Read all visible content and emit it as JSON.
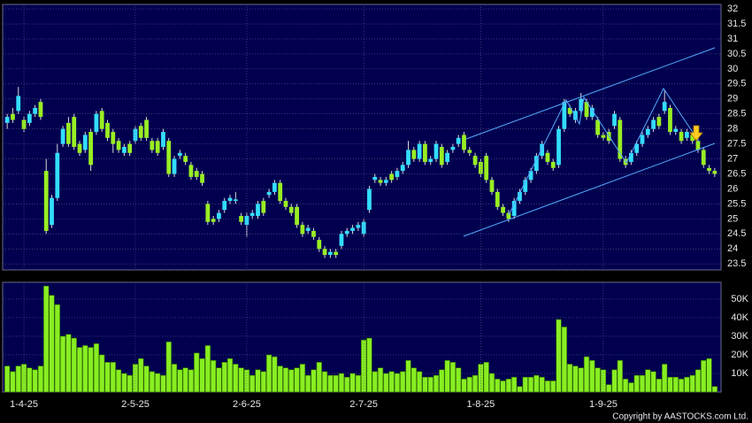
{
  "chart_data": [
    {
      "type": "candlestick",
      "up_color": "#33ddff",
      "down_color": "#99ee22",
      "wick_color": "#d8d8d8",
      "grid": true,
      "ylim": [
        23.3,
        32.15
      ],
      "yticks": [
        23.5,
        24,
        24.5,
        25,
        25.5,
        26,
        26.5,
        27,
        27.5,
        28,
        28.5,
        29,
        29.5,
        30,
        30.5,
        31,
        31.5,
        32
      ],
      "open": [
        28.2,
        28.5,
        28.6,
        28.3,
        28.2,
        28.5,
        28.9,
        26.6,
        24.8,
        25.7,
        27.5,
        28.2,
        28.4,
        27.5,
        27.3,
        27.9,
        27.9,
        28.6,
        28.2,
        27.9,
        27.6,
        27.2,
        27.5,
        27.6,
        28.1,
        28.3,
        27.6,
        27.6,
        27.4,
        27.6,
        26.5,
        27.1,
        27.1,
        26.8,
        26.6,
        26.5,
        25.5,
        25.0,
        25.0,
        25.3,
        25.6,
        25.6,
        25.1,
        24.8,
        25.1,
        25.1,
        25.6,
        25.8,
        25.9,
        26.2,
        25.6,
        25.4,
        25.4,
        24.8,
        24.6,
        24.6,
        24.3,
        24.0,
        23.8,
        23.9,
        24.1,
        24.5,
        24.6,
        24.7,
        24.5,
        25.3,
        26.3,
        26.3,
        26.2,
        26.5,
        26.4,
        26.6,
        26.8,
        27.3,
        27.0,
        27.5,
        26.9,
        27.0,
        27.4,
        26.9,
        27.3,
        27.5,
        27.8,
        27.3,
        27.1,
        26.9,
        27.1,
        26.3,
        25.9,
        25.4,
        25.2,
        25.1,
        25.6,
        25.9,
        26.3,
        26.6,
        27.1,
        27.2,
        26.9,
        26.8,
        28.0,
        28.7,
        28.3,
        28.6,
        28.9,
        28.4,
        28.3,
        27.8,
        27.9,
        28.1,
        28.3,
        27.0,
        26.9,
        27.2,
        27.5,
        27.8,
        28.0,
        28.4,
        28.6,
        28.7,
        27.9,
        27.9,
        27.7,
        27.8,
        27.6,
        27.3,
        26.7,
        26.6
      ],
      "high": [
        28.5,
        28.7,
        29.4,
        28.4,
        28.6,
        28.8,
        29.0,
        27.0,
        25.8,
        27.5,
        28.1,
        28.4,
        28.5,
        27.6,
        27.9,
        28.0,
        28.6,
        28.7,
        28.3,
        28.0,
        27.7,
        27.5,
        27.6,
        28.1,
        28.2,
        28.4,
        27.7,
        27.7,
        28.0,
        27.7,
        27.1,
        27.3,
        27.2,
        26.9,
        26.7,
        26.6,
        25.6,
        25.1,
        25.3,
        25.7,
        25.8,
        25.9,
        25.2,
        25.2,
        25.3,
        25.6,
        25.7,
        26.0,
        26.3,
        26.3,
        25.7,
        25.5,
        25.5,
        24.9,
        24.8,
        24.7,
        24.4,
        24.1,
        24.0,
        24.0,
        24.6,
        24.7,
        24.8,
        24.9,
        25.0,
        26.1,
        26.5,
        26.4,
        26.4,
        26.6,
        26.7,
        26.9,
        27.6,
        27.4,
        27.6,
        27.6,
        27.1,
        27.6,
        27.5,
        27.3,
        27.5,
        27.8,
        27.9,
        27.4,
        27.2,
        27.0,
        27.2,
        26.4,
        26.0,
        25.5,
        25.3,
        25.7,
        26.0,
        26.4,
        26.7,
        27.2,
        27.6,
        27.3,
        27.0,
        28.1,
        29.0,
        28.8,
        28.7,
        29.2,
        29.0,
        28.8,
        28.4,
        27.9,
        28.0,
        28.6,
        28.4,
        27.1,
        27.3,
        27.6,
        27.9,
        28.1,
        28.4,
        28.5,
        29.3,
        28.8,
        28.1,
        28.0,
        28.0,
        27.9,
        27.7,
        27.4,
        26.8,
        26.7
      ],
      "low": [
        28.0,
        28.2,
        28.5,
        27.9,
        28.1,
        28.4,
        28.3,
        24.5,
        24.7,
        25.6,
        27.4,
        27.4,
        27.3,
        27.1,
        27.2,
        26.6,
        27.8,
        27.9,
        27.6,
        27.2,
        27.2,
        27.1,
        27.1,
        27.5,
        27.6,
        27.6,
        27.2,
        27.1,
        27.3,
        26.4,
        26.4,
        27.0,
        26.8,
        26.3,
        26.3,
        26.1,
        24.8,
        24.8,
        24.9,
        25.2,
        25.5,
        25.5,
        24.8,
        24.4,
        25.0,
        25.0,
        25.1,
        25.7,
        25.8,
        25.5,
        25.3,
        25.1,
        24.7,
        24.4,
        24.5,
        24.3,
        23.9,
        23.7,
        23.7,
        23.7,
        24.0,
        24.4,
        24.5,
        24.6,
        24.4,
        25.2,
        26.2,
        26.1,
        26.1,
        26.2,
        26.3,
        26.5,
        26.7,
        26.9,
        26.9,
        26.8,
        26.8,
        26.9,
        26.7,
        26.8,
        27.2,
        27.4,
        27.2,
        27.1,
        26.7,
        26.4,
        26.2,
        25.8,
        25.3,
        25.1,
        24.9,
        25.0,
        25.5,
        25.8,
        26.2,
        26.5,
        27.0,
        26.8,
        26.6,
        26.7,
        27.9,
        28.4,
        28.2,
        28.5,
        28.3,
        28.3,
        27.7,
        27.6,
        27.5,
        28.0,
        26.9,
        26.7,
        26.8,
        27.1,
        27.4,
        27.7,
        27.9,
        28.0,
        28.5,
        27.8,
        27.8,
        27.5,
        27.6,
        27.5,
        27.2,
        26.7,
        26.5,
        26.4
      ],
      "close": [
        28.4,
        28.3,
        29.1,
        28.0,
        28.5,
        28.7,
        28.4,
        24.6,
        25.7,
        27.2,
        28.0,
        27.5,
        27.4,
        27.2,
        27.8,
        26.8,
        28.5,
        28.0,
        27.7,
        27.5,
        27.3,
        27.4,
        27.2,
        28.0,
        27.7,
        27.7,
        27.3,
        27.2,
        27.9,
        26.5,
        27.0,
        27.2,
        26.9,
        26.4,
        26.4,
        26.2,
        24.9,
        24.9,
        25.2,
        25.6,
        25.7,
        25.65,
        24.9,
        25.1,
        25.2,
        25.5,
        25.2,
        25.9,
        26.2,
        25.6,
        25.4,
        25.2,
        24.8,
        24.5,
        24.7,
        24.4,
        24.0,
        23.8,
        23.9,
        23.8,
        24.5,
        24.6,
        24.7,
        24.8,
        24.9,
        26.0,
        26.4,
        26.2,
        26.3,
        26.3,
        26.6,
        26.8,
        27.3,
        27.0,
        27.5,
        26.9,
        27.0,
        27.5,
        26.8,
        27.2,
        27.4,
        27.7,
        27.3,
        27.2,
        26.8,
        26.5,
        26.3,
        25.9,
        25.4,
        25.2,
        25.0,
        25.6,
        25.9,
        26.3,
        26.6,
        27.1,
        27.5,
        26.9,
        26.7,
        28.0,
        28.9,
        28.5,
        28.6,
        29.0,
        28.4,
        28.7,
        27.8,
        27.7,
        27.6,
        28.5,
        27.0,
        26.8,
        27.2,
        27.5,
        27.8,
        28.0,
        28.3,
        28.1,
        28.9,
        27.9,
        28.0,
        27.6,
        27.9,
        27.6,
        27.3,
        26.8,
        26.6,
        26.5
      ]
    },
    {
      "type": "bar",
      "color": "#88ee22",
      "grid": true,
      "ylim": [
        0,
        59
      ],
      "yticks": [
        {
          "value": 10,
          "label": "10K"
        },
        {
          "value": 20,
          "label": "20K"
        },
        {
          "value": 30,
          "label": "30K"
        },
        {
          "value": 40,
          "label": "40K"
        },
        {
          "value": 50,
          "label": "50K"
        }
      ],
      "categories": [
        null,
        null,
        null,
        "1-4-25",
        null,
        null,
        null,
        null,
        null,
        null,
        null,
        null,
        null,
        null,
        null,
        null,
        null,
        null,
        null,
        null,
        null,
        null,
        null,
        "2-5-25",
        null,
        null,
        null,
        null,
        null,
        null,
        null,
        null,
        null,
        null,
        null,
        null,
        null,
        null,
        null,
        null,
        null,
        null,
        null,
        "2-6-25",
        null,
        null,
        null,
        null,
        null,
        null,
        null,
        null,
        null,
        null,
        null,
        null,
        null,
        null,
        null,
        null,
        null,
        null,
        null,
        null,
        "2-7-25",
        null,
        null,
        null,
        null,
        null,
        null,
        null,
        null,
        null,
        null,
        null,
        null,
        null,
        null,
        null,
        null,
        null,
        null,
        null,
        null,
        "1-8-25",
        null,
        null,
        null,
        null,
        null,
        null,
        null,
        null,
        null,
        null,
        null,
        null,
        null,
        null,
        null,
        null,
        null,
        null,
        null,
        null,
        null,
        "1-9-25",
        null,
        null,
        null,
        null,
        null,
        null,
        null,
        null,
        null,
        null,
        null,
        null,
        null,
        null,
        null,
        null,
        null,
        null,
        null,
        null
      ],
      "values": [
        14,
        11,
        14,
        15,
        13,
        12,
        14,
        57,
        52,
        47,
        30,
        31,
        29,
        24,
        25,
        24,
        26,
        20,
        16,
        16,
        12,
        10,
        9,
        15,
        18,
        14,
        11,
        10,
        9,
        27,
        15,
        12,
        13,
        12,
        21,
        18,
        25,
        17,
        13,
        16,
        18,
        15,
        13,
        12,
        9,
        12,
        11,
        20,
        19,
        14,
        13,
        12,
        13,
        15,
        9,
        12,
        16,
        11,
        9,
        9,
        10,
        8,
        10,
        9,
        28,
        29,
        11,
        13,
        10,
        11,
        10,
        11,
        17,
        13,
        11,
        8,
        8,
        9,
        12,
        17,
        16,
        13,
        7,
        8,
        9,
        15,
        16,
        10,
        7,
        6,
        7,
        8,
        3,
        8,
        8,
        9,
        8,
        6,
        6,
        39,
        35,
        15,
        14,
        13,
        19,
        17,
        13,
        12,
        4,
        12,
        17,
        7,
        5,
        9,
        9,
        12,
        11,
        7,
        15,
        8,
        8,
        7,
        8,
        9,
        12,
        17,
        18,
        3
      ]
    }
  ],
  "footer": {
    "copyright": "Copyright by AASTOCKS.com Ltd."
  }
}
